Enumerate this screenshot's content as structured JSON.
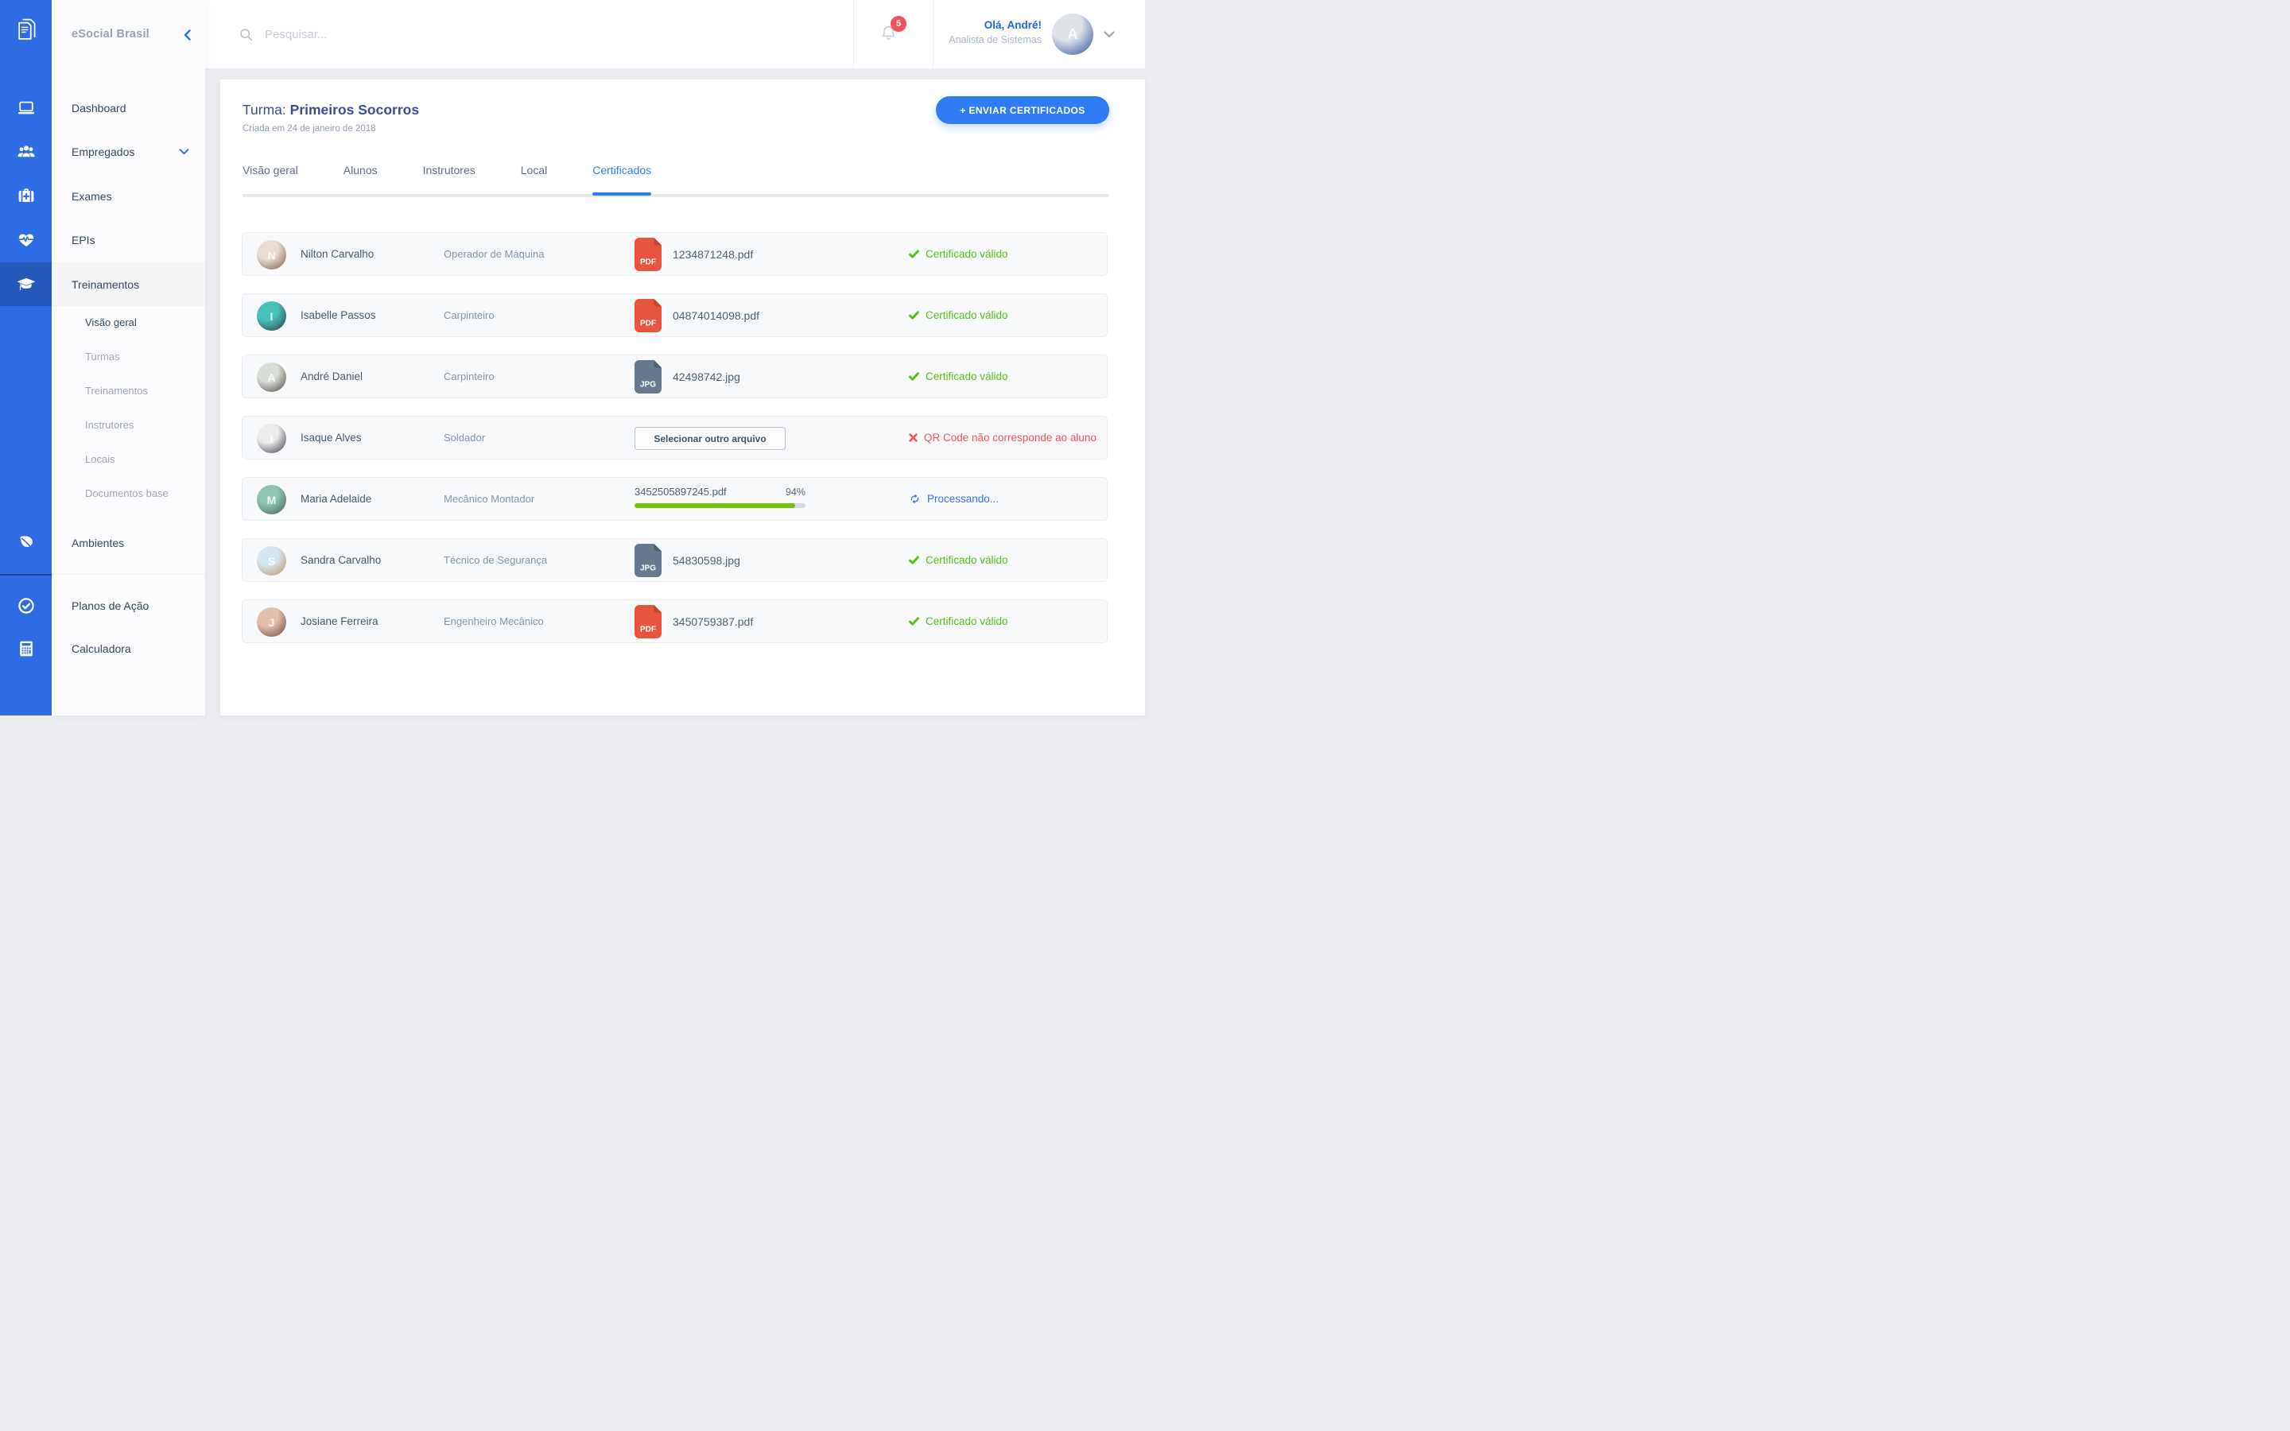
{
  "brand": {
    "name": "eSocial Brasil"
  },
  "colors": {
    "rail_blue": "#2d6ce3",
    "accent_blue": "#2e7bf2",
    "tab_active_blue": "#2e80f2",
    "greeting_blue": "#1b66d9",
    "title_indigo": "#3e4d92",
    "badge_red": "#f4515f",
    "valid_green": "#55c015",
    "progress_green": "#73c30d",
    "error_red": "#f4515c",
    "processing_blue": "#3a6cf0",
    "pdf_red": "#e8553e",
    "jpg_slate": "#66798e"
  },
  "rail": {
    "items": [
      {
        "id": "dashboard",
        "icon": "laptop"
      },
      {
        "id": "empregados",
        "icon": "users"
      },
      {
        "id": "exames",
        "icon": "medkit"
      },
      {
        "id": "epis",
        "icon": "heart-pulse"
      },
      {
        "id": "treinamentos",
        "icon": "graduation-cap",
        "active": true
      },
      {
        "id": "ambientes",
        "icon": "leaf"
      },
      {
        "id": "planos-de-acao",
        "icon": "check-circle"
      },
      {
        "id": "calculadora",
        "icon": "calculator"
      }
    ]
  },
  "sidebar": {
    "items": [
      {
        "id": "dashboard",
        "label": "Dashboard"
      },
      {
        "id": "empregados",
        "label": "Empregados",
        "chevron": true
      },
      {
        "id": "exames",
        "label": "Exames"
      },
      {
        "id": "epis",
        "label": "EPIs"
      },
      {
        "id": "treinamentos",
        "label": "Treinamentos",
        "active": true
      }
    ],
    "subitems": [
      {
        "id": "visao-geral",
        "label": "Visão geral",
        "active": true
      },
      {
        "id": "turmas",
        "label": "Turmas"
      },
      {
        "id": "treinamentos",
        "label": "Treinamentos"
      },
      {
        "id": "instrutores",
        "label": "Instrutores"
      },
      {
        "id": "locais",
        "label": "Locais"
      },
      {
        "id": "documentos-base",
        "label": "Documentos base"
      }
    ],
    "bottom_items": [
      {
        "id": "ambientes",
        "label": "Ambientes"
      },
      {
        "id": "planos-de-acao",
        "label": "Planos de Ação"
      },
      {
        "id": "calculadora",
        "label": "Calculadora"
      }
    ]
  },
  "header": {
    "search_placeholder": "Pesquisar...",
    "notification_count": "5",
    "greeting": "Olá, André!",
    "user_role": "Analista de Sistemas",
    "avatar": {
      "from": "#dfe3e8",
      "to": "#274a9e",
      "initial": "A"
    }
  },
  "page": {
    "title_prefix": "Turma:",
    "title_name": "Primeiros Socorros",
    "created": "Criada em 24 de janeiro de 2018",
    "primary_action": "+ ENVIAR CERTIFICADOS"
  },
  "tabs": [
    {
      "label": "Visão geral"
    },
    {
      "label": "Alunos"
    },
    {
      "label": "Instrutores"
    },
    {
      "label": "Local"
    },
    {
      "label": "Certificados",
      "active": true
    }
  ],
  "rows": [
    {
      "name": "Nilton Carvalho",
      "role": "Operador de Máquina",
      "file": {
        "kind": "pdf",
        "badge": "PDF",
        "filename": "1234871248.pdf"
      },
      "status": {
        "kind": "valid",
        "text": "Certificado válido"
      },
      "avatar": {
        "from": "#e8ddd2",
        "to": "#7a5a42",
        "initial": "N"
      }
    },
    {
      "name": "Isabelle Passos",
      "role": "Carpinteiro",
      "file": {
        "kind": "pdf",
        "badge": "PDF",
        "filename": "04874014098.pdf"
      },
      "status": {
        "kind": "valid",
        "text": "Certificado válido"
      },
      "avatar": {
        "from": "#49c0b9",
        "to": "#273744",
        "initial": "I"
      }
    },
    {
      "name": "André Daniel",
      "role": "Carpinteiro",
      "file": {
        "kind": "jpg",
        "badge": "JPG",
        "filename": "42498742.jpg"
      },
      "status": {
        "kind": "valid",
        "text": "Certificado válido"
      },
      "avatar": {
        "from": "#d9ddd8",
        "to": "#55483e",
        "initial": "A"
      }
    },
    {
      "name": "Isaque Alves",
      "role": "Soldador",
      "file": {
        "kind": "action",
        "button_label": "Selecionar outro arquivo"
      },
      "status": {
        "kind": "error",
        "text": "QR Code não corresponde ao aluno"
      },
      "avatar": {
        "from": "#ececee",
        "to": "#34383f",
        "initial": "I"
      }
    },
    {
      "name": "Maria Adelaide",
      "role": "Mecânico Montador",
      "file": {
        "kind": "progress",
        "filename": "3452505897245.pdf",
        "percent_label": "94%",
        "percent": 94
      },
      "status": {
        "kind": "processing",
        "text": "Processando..."
      },
      "avatar": {
        "from": "#8ec4b2",
        "to": "#40605a",
        "initial": "M"
      }
    },
    {
      "name": "Sandra Carvalho",
      "role": "Técnico de Segurança",
      "file": {
        "kind": "jpg",
        "badge": "JPG",
        "filename": "54830598.jpg"
      },
      "status": {
        "kind": "valid",
        "text": "Certificado válido"
      },
      "avatar": {
        "from": "#d4e6f2",
        "to": "#bd8f62",
        "initial": "S"
      }
    },
    {
      "name": "Josiane Ferreira",
      "role": "Engenheiro Mecânico",
      "file": {
        "kind": "pdf",
        "badge": "PDF",
        "filename": "3450759387.pdf"
      },
      "status": {
        "kind": "valid",
        "text": "Certificado válido"
      },
      "avatar": {
        "from": "#e2c0ab",
        "to": "#6b463a",
        "initial": "J"
      }
    }
  ]
}
